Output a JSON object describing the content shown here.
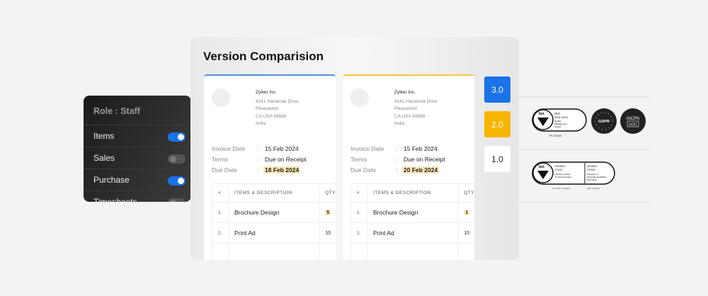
{
  "role_panel": {
    "title": "Role : Staff",
    "items": [
      {
        "label": "Items",
        "on": true
      },
      {
        "label": "Sales",
        "on": false
      },
      {
        "label": "Purchase",
        "on": true
      },
      {
        "label": "Timesheets",
        "on": false
      }
    ]
  },
  "main": {
    "title": "Version Comparision",
    "invoices": [
      {
        "company": "Zylker Inc.",
        "address": [
          "4141 Hacienda Drive",
          "Pleasanton",
          "CA USA 94588",
          "India"
        ],
        "invoice_date_label": "Invoice Date",
        "invoice_date": "15 Feb 2024",
        "terms_label": "Terms",
        "terms": "Due on Receipt",
        "due_date_label": "Due Date",
        "due_date": "18 Feb 2024",
        "headers": [
          "#",
          "ITEMS & DESCRIPTION",
          "QTY"
        ],
        "rows": [
          {
            "n": "1.",
            "item": "Brochure Design",
            "qty": "5"
          },
          {
            "n": "2.",
            "item": "Print Ad",
            "qty": "10"
          }
        ]
      },
      {
        "company": "Zylker Inc.",
        "address": [
          "4141 Hacienda Drive",
          "Pleasanton",
          "CA USA 94588",
          "India"
        ],
        "invoice_date_label": "Invoice Date",
        "invoice_date": "15 Feb 2024",
        "terms_label": "Terms",
        "terms": "Due on Receipt",
        "due_date_label": "Due Date",
        "due_date": "20 Feb 2024",
        "headers": [
          "#",
          "ITEMS & DESCRIPTION",
          "QTY"
        ],
        "rows": [
          {
            "n": "1.",
            "item": "Brochure Design",
            "qty": "1"
          },
          {
            "n": "2.",
            "item": "Print Ad",
            "qty": "10"
          }
        ]
      }
    ],
    "versions": [
      {
        "label": "3.0",
        "color": "#1a73e8"
      },
      {
        "label": "2.0",
        "color": "#f7b500"
      },
      {
        "label": "1.0",
        "color": "#ffffff"
      }
    ]
  },
  "certifications": {
    "bsi_9001": {
      "brand": "bsi.",
      "std": "ISO 9001:2015",
      "desc": "Quality Management System",
      "cert": "FS 724104"
    },
    "gdpr": "GDPR",
    "aicpa": [
      "AICPA",
      "SOC"
    ],
    "bsi_27017": {
      "brand": "bsi.",
      "std1": "ISO/IEC 27017",
      "desc1": "Security Controls for Cloud Services",
      "cert1": "CLOUD 714532",
      "std2": "ISO/IEC 27018",
      "desc2": "Protection of Personally Identifiable Information",
      "cert2": "PII 714533"
    }
  }
}
